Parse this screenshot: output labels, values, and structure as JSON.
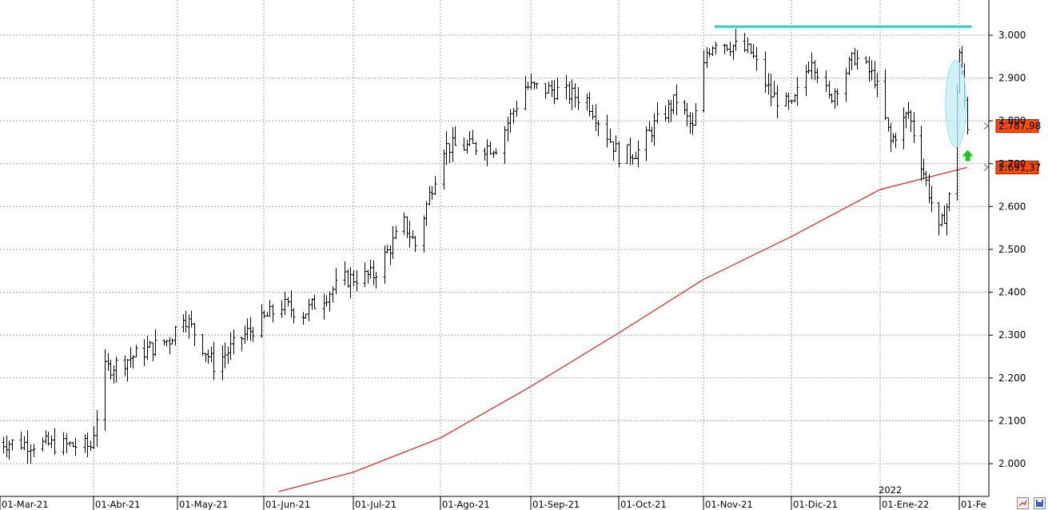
{
  "chart_data": {
    "type": "ohlc",
    "title": "",
    "xlabel": "",
    "ylabel": "",
    "ylim": [
      1930,
      3070
    ],
    "y_ticks": [
      {
        "value": 2000,
        "label": "2.000"
      },
      {
        "value": 2100,
        "label": "2.100"
      },
      {
        "value": 2200,
        "label": "2.200"
      },
      {
        "value": 2300,
        "label": "2.300"
      },
      {
        "value": 2400,
        "label": "2.400"
      },
      {
        "value": 2500,
        "label": "2.500"
      },
      {
        "value": 2600,
        "label": "2.600"
      },
      {
        "value": 2700,
        "label": "2.700"
      },
      {
        "value": 2800,
        "label": "2.800"
      },
      {
        "value": 2900,
        "label": "2.900"
      },
      {
        "value": 3000,
        "label": "3.000"
      }
    ],
    "x_range": [
      "2021-03-01",
      "2022-02-04"
    ],
    "x_ticks": [
      {
        "date": "2021-03-01",
        "label": "01-Mar-21"
      },
      {
        "date": "2021-04-01",
        "label": "01-Abr-21"
      },
      {
        "date": "2021-05-01",
        "label": "01-May-21"
      },
      {
        "date": "2021-06-01",
        "label": "01-Jun-21"
      },
      {
        "date": "2021-07-01",
        "label": "01-Jul-21"
      },
      {
        "date": "2021-08-01",
        "label": "01-Ago-21"
      },
      {
        "date": "2021-09-01",
        "label": "01-Sep-21"
      },
      {
        "date": "2021-10-01",
        "label": "01-Oct-21"
      },
      {
        "date": "2021-11-01",
        "label": "01-Nov-21"
      },
      {
        "date": "2021-12-01",
        "label": "01-Dic-21"
      },
      {
        "date": "2022-01-01",
        "label": "01-Ene-22"
      },
      {
        "date": "2022-02-01",
        "label": "01-Fe"
      }
    ],
    "year_marker": {
      "date": "2022-01-01",
      "label": "2022"
    },
    "grid": true,
    "price_bars_anchors": [
      {
        "date": "2021-03-01",
        "value": 2050
      },
      {
        "date": "2021-03-31",
        "value": 2040
      },
      {
        "date": "2021-04-05",
        "value": 2220
      },
      {
        "date": "2021-04-28",
        "value": 2290
      },
      {
        "date": "2021-05-03",
        "value": 2350
      },
      {
        "date": "2021-05-14",
        "value": 2230
      },
      {
        "date": "2021-05-25",
        "value": 2300
      },
      {
        "date": "2021-06-07",
        "value": 2370
      },
      {
        "date": "2021-06-14",
        "value": 2350
      },
      {
        "date": "2021-06-28",
        "value": 2430
      },
      {
        "date": "2021-07-08",
        "value": 2440
      },
      {
        "date": "2021-07-19",
        "value": 2560
      },
      {
        "date": "2021-07-23",
        "value": 2510
      },
      {
        "date": "2021-07-29",
        "value": 2650
      },
      {
        "date": "2021-08-02",
        "value": 2740
      },
      {
        "date": "2021-08-20",
        "value": 2740
      },
      {
        "date": "2021-08-30",
        "value": 2880
      },
      {
        "date": "2021-09-10",
        "value": 2870
      },
      {
        "date": "2021-09-20",
        "value": 2850
      },
      {
        "date": "2021-10-01",
        "value": 2720
      },
      {
        "date": "2021-10-08",
        "value": 2730
      },
      {
        "date": "2021-10-14",
        "value": 2790
      },
      {
        "date": "2021-10-22",
        "value": 2850
      },
      {
        "date": "2021-10-28",
        "value": 2780
      },
      {
        "date": "2021-11-02",
        "value": 2960
      },
      {
        "date": "2021-11-05",
        "value": 2990
      },
      {
        "date": "2021-11-17",
        "value": 2960
      },
      {
        "date": "2021-11-24",
        "value": 2860
      },
      {
        "date": "2021-12-01",
        "value": 2830
      },
      {
        "date": "2021-12-08",
        "value": 2950
      },
      {
        "date": "2021-12-14",
        "value": 2850
      },
      {
        "date": "2021-12-23",
        "value": 2950
      },
      {
        "date": "2021-12-30",
        "value": 2900
      },
      {
        "date": "2022-01-05",
        "value": 2750
      },
      {
        "date": "2022-01-12",
        "value": 2820
      },
      {
        "date": "2022-01-18",
        "value": 2680
      },
      {
        "date": "2022-01-24",
        "value": 2540
      },
      {
        "date": "2022-01-28",
        "value": 2620
      },
      {
        "date": "2022-02-01",
        "value": 2960
      },
      {
        "date": "2022-02-04",
        "value": 2790
      }
    ],
    "moving_average": {
      "color": "#d42020",
      "points": [
        {
          "date": "2021-06-06",
          "value": 1935
        },
        {
          "date": "2021-07-01",
          "value": 1980
        },
        {
          "date": "2021-08-01",
          "value": 2060
        },
        {
          "date": "2021-09-01",
          "value": 2180
        },
        {
          "date": "2021-10-01",
          "value": 2305
        },
        {
          "date": "2021-11-01",
          "value": 2430
        },
        {
          "date": "2021-12-01",
          "value": 2530
        },
        {
          "date": "2022-01-01",
          "value": 2640
        },
        {
          "date": "2022-02-04",
          "value": 2691.37
        }
      ]
    },
    "resistance_line": {
      "value": 3020,
      "from": "2021-11-01",
      "to": "2022-02-04",
      "color": "#40c4c4"
    },
    "highlight_ellipse": {
      "date": "2022-01-31",
      "y_top": 2930,
      "y_bottom": 2750,
      "color": "#bfeef5"
    },
    "up_arrow": {
      "date": "2022-02-04",
      "value": 2710,
      "color": "#1ec41e"
    },
    "price_labels": [
      {
        "value": 2787.98,
        "label": "2.787,98",
        "color": "#ff4b0a"
      },
      {
        "value": 2691.37,
        "label": "2.691,37",
        "color": "#ff4b0a"
      }
    ]
  },
  "toolbar": {
    "icons": [
      "chart-settings-icon",
      "save-icon"
    ]
  }
}
